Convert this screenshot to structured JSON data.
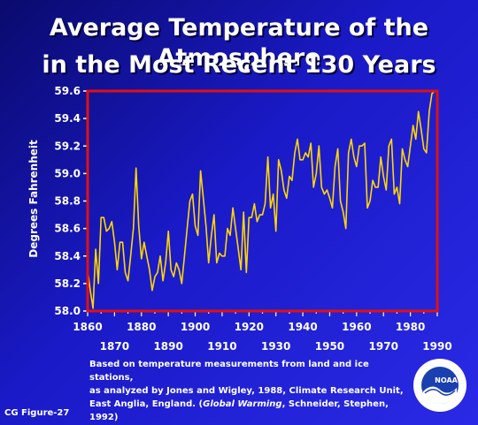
{
  "chart_data": {
    "type": "line",
    "title_line1": "Average Temperature of the Atmosphere",
    "title_line2": "in the Most Recent 130 Years",
    "ylabel": "Degrees Fahrenheit",
    "xlim": [
      1860,
      1990
    ],
    "ylim": [
      58.0,
      59.6
    ],
    "y_ticks": [
      "58.0",
      "58.2",
      "58.4",
      "58.6",
      "58.8",
      "59.0",
      "59.2",
      "59.4",
      "59.6"
    ],
    "x_ticks_top": [
      "1860",
      "1880",
      "1900",
      "1920",
      "1940",
      "1960",
      "1980"
    ],
    "x_ticks_bottom": [
      "1870",
      "1890",
      "1910",
      "1930",
      "1950",
      "1970",
      "1990"
    ],
    "line_color": "#ffd700",
    "frame_color": "#e01010",
    "grid": false,
    "series": [
      {
        "x": [
          1860,
          1861,
          1862,
          1863,
          1864,
          1865,
          1866,
          1867,
          1868,
          1869,
          1870,
          1871,
          1872,
          1873,
          1874,
          1875,
          1876,
          1877,
          1878,
          1879,
          1880,
          1881,
          1882,
          1883,
          1884,
          1885,
          1886,
          1887,
          1888,
          1889,
          1890,
          1891,
          1892,
          1893,
          1894,
          1895,
          1896,
          1897,
          1898,
          1899,
          1900,
          1901,
          1902,
          1903,
          1904,
          1905,
          1906,
          1907,
          1908,
          1909,
          1910,
          1911,
          1912,
          1913,
          1914,
          1915,
          1916,
          1917,
          1918,
          1919,
          1920,
          1921,
          1922,
          1923,
          1924,
          1925,
          1926,
          1927,
          1928,
          1929,
          1930,
          1931,
          1932,
          1933,
          1934,
          1935,
          1936,
          1937,
          1938,
          1939,
          1940,
          1941,
          1942,
          1943,
          1944,
          1945,
          1946,
          1947,
          1948,
          1949,
          1950,
          1951,
          1952,
          1953,
          1954,
          1955,
          1956,
          1957,
          1958,
          1959,
          1960,
          1961,
          1962,
          1963,
          1964,
          1965,
          1966,
          1967,
          1968,
          1969,
          1970,
          1971,
          1972,
          1973,
          1974,
          1975,
          1976,
          1977,
          1978,
          1979,
          1980,
          1981,
          1982,
          1983,
          1984,
          1985,
          1986,
          1987,
          1988,
          1989
        ],
        "y": [
          58.3,
          58.15,
          58.02,
          58.45,
          58.2,
          58.68,
          58.68,
          58.58,
          58.6,
          58.65,
          58.5,
          58.3,
          58.5,
          58.5,
          58.28,
          58.22,
          58.4,
          58.6,
          59.04,
          58.62,
          58.38,
          58.5,
          58.4,
          58.3,
          58.15,
          58.25,
          58.28,
          58.4,
          58.22,
          58.35,
          58.58,
          58.3,
          58.25,
          58.35,
          58.3,
          58.2,
          58.4,
          58.6,
          58.8,
          58.85,
          58.62,
          58.55,
          59.02,
          58.82,
          58.62,
          58.35,
          58.55,
          58.7,
          58.35,
          58.42,
          58.4,
          58.4,
          58.6,
          58.55,
          58.75,
          58.6,
          58.45,
          58.3,
          58.72,
          58.28,
          58.68,
          58.68,
          58.78,
          58.65,
          58.7,
          58.7,
          58.78,
          59.12,
          58.75,
          58.85,
          58.58,
          59.1,
          59.02,
          58.88,
          58.82,
          58.98,
          58.95,
          59.15,
          59.25,
          59.1,
          59.1,
          59.15,
          59.12,
          59.22,
          58.9,
          59.0,
          59.2,
          58.9,
          58.85,
          58.88,
          58.82,
          58.75,
          59.05,
          59.18,
          58.8,
          58.72,
          58.6,
          59.15,
          59.25,
          59.12,
          59.05,
          59.2,
          59.2,
          59.22,
          58.75,
          58.8,
          58.95,
          58.9,
          58.9,
          59.12,
          58.98,
          58.88,
          59.2,
          59.25,
          58.85,
          58.9,
          58.78,
          59.18,
          59.1,
          59.05,
          59.2,
          59.35,
          59.25,
          59.45,
          59.32,
          59.18,
          59.15,
          59.45,
          59.58,
          59.6
        ]
      }
    ]
  },
  "note": {
    "line1": "Based on temperature measurements from land and ice stations,",
    "line2": "as analyzed by Jones and Wigley, 1988, Climate Research Unit,",
    "line3_prefix": "East Anglia, England. (",
    "line3_italic": "Global Warming",
    "line3_suffix": ", Schneider, Stephen, 1992)"
  },
  "figure_label": "CG Figure-27",
  "logo_text": "NOAA"
}
